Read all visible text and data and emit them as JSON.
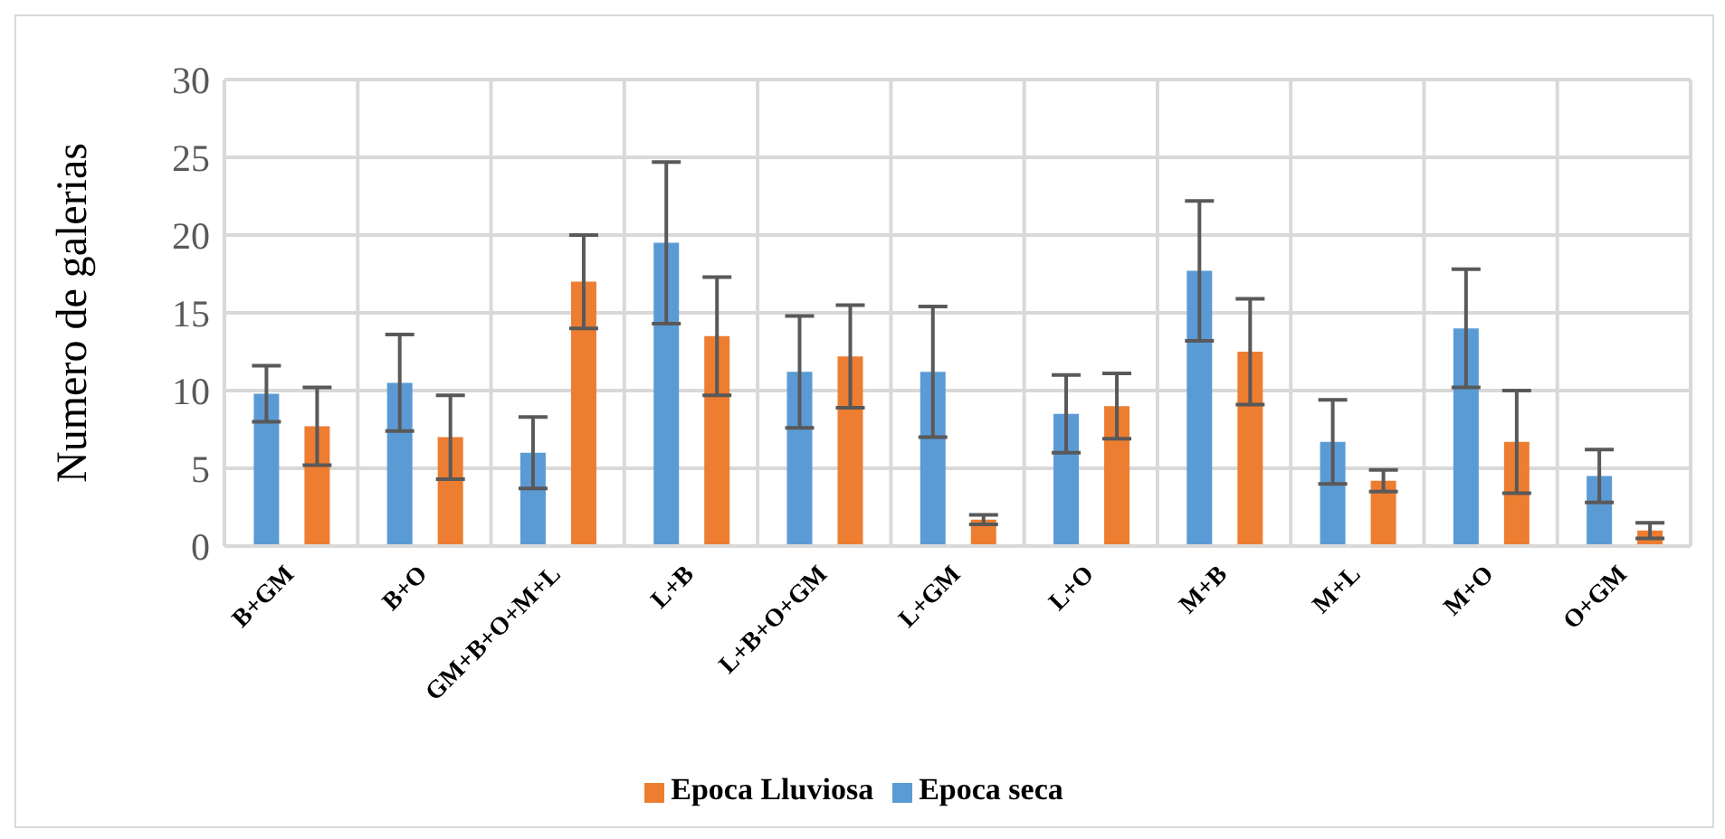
{
  "chart_data": {
    "type": "bar",
    "ylabel": "Numero de galerias",
    "categories": [
      "B+GM",
      "B+O",
      "GM+B+O+M+L",
      "L+B",
      "L+B+O+GM",
      "L+GM",
      "L+O",
      "M+B",
      "M+L",
      "M+O",
      "O+GM"
    ],
    "series": [
      {
        "name": "Epoca seca",
        "color": "#5b9bd5",
        "values": [
          9.8,
          10.5,
          6,
          19.5,
          11.2,
          11.2,
          8.5,
          17.7,
          6.7,
          14,
          4.5
        ],
        "errors": [
          1.8,
          3.1,
          2.3,
          5.2,
          3.6,
          4.2,
          2.5,
          4.5,
          2.7,
          3.8,
          1.7
        ]
      },
      {
        "name": "Epoca Lluviosa",
        "color": "#ed7d31",
        "values": [
          7.7,
          7,
          17,
          13.5,
          12.2,
          1.7,
          9,
          12.5,
          4.2,
          6.7,
          1
        ],
        "errors": [
          2.5,
          2.7,
          3,
          3.8,
          3.3,
          0.3,
          2.1,
          3.4,
          0.7,
          3.3,
          0.5
        ]
      }
    ],
    "ylim": [
      0,
      30
    ],
    "yticks": [
      0,
      5,
      10,
      15,
      20,
      25,
      30
    ],
    "grid": true,
    "legend": "bottom"
  }
}
